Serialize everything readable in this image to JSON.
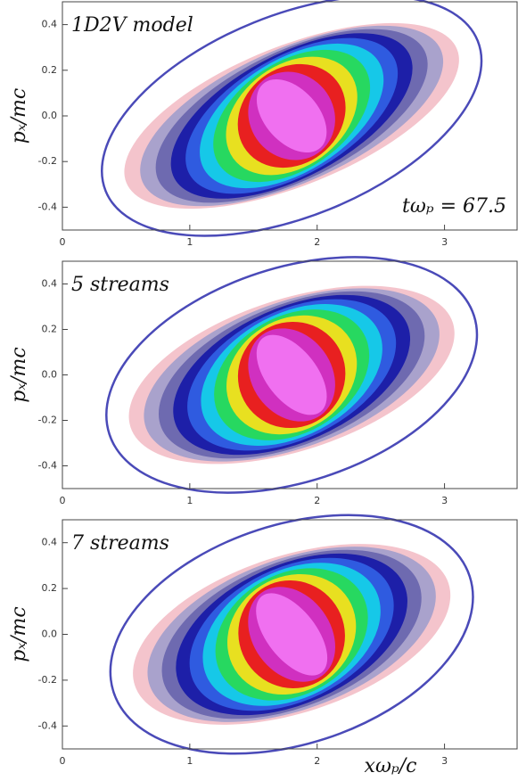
{
  "chart_data": [
    {
      "type": "phase-space",
      "title": "1D2V model",
      "annotation": "tωₚ = 67.5",
      "ylabel": "pₓ/mc",
      "xlim": [
        0,
        3.57
      ],
      "xticks": [
        0,
        1,
        2,
        3
      ],
      "ylim": [
        -0.5,
        0.5
      ],
      "yticks": [
        -0.4,
        -0.2,
        {
          "value": 0,
          "label": "0.0"
        },
        0.2,
        0.4
      ]
    },
    {
      "type": "phase-space",
      "title": "5 streams",
      "ylabel": "pₓ/mc",
      "xlim": [
        0,
        3.57
      ],
      "xticks": [
        0,
        1,
        2,
        3
      ],
      "ylim": [
        -0.5,
        0.5
      ],
      "yticks": [
        -0.4,
        -0.2,
        {
          "value": 0,
          "label": "0.0"
        },
        0.2,
        0.4
      ]
    },
    {
      "type": "phase-space",
      "title": "7 streams",
      "ylabel": "pₓ/mc",
      "xlabel": "xωₚ/c",
      "xlim": [
        0,
        3.57
      ],
      "xticks": [
        0,
        1,
        2,
        3
      ],
      "ylim": [
        -0.5,
        0.5
      ],
      "yticks": [
        -0.4,
        -0.2,
        {
          "value": 0,
          "label": "0.0"
        },
        0.2,
        0.4
      ]
    }
  ]
}
